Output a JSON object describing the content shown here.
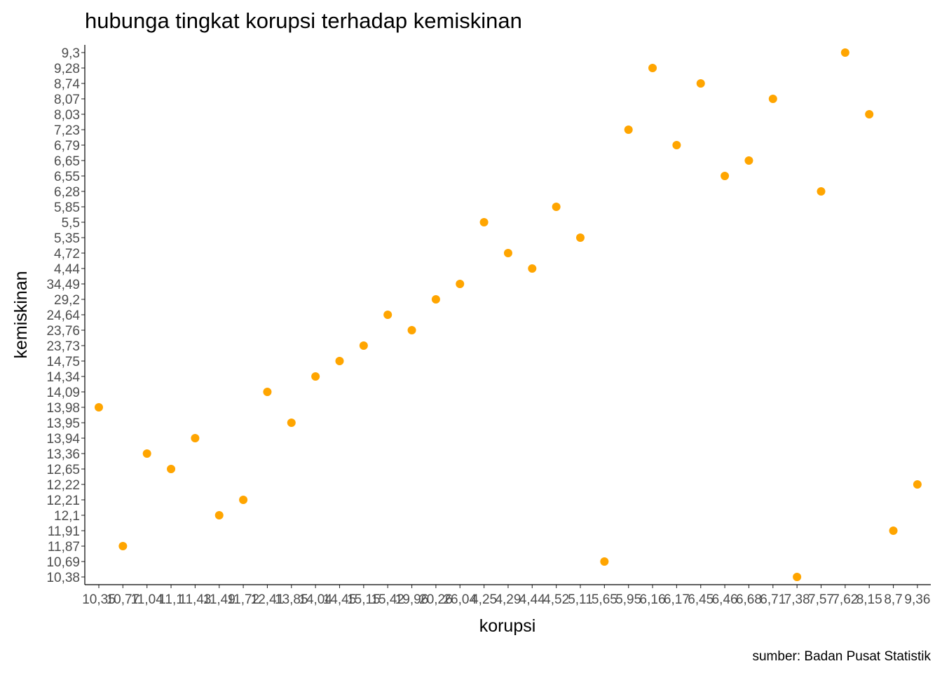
{
  "chart_data": {
    "type": "scatter",
    "title": "hubunga tingkat korupsi terhadap kemiskinan",
    "xlabel": "korupsi",
    "ylabel": "kemiskinan",
    "caption": "sumber: Badan Pusat Statistik",
    "x_axis_type": "categorical",
    "y_axis_type": "categorical",
    "x_categories": [
      "10,35",
      "10,77",
      "11,04",
      "11,1",
      "11,43",
      "11,49",
      "11,72",
      "12,41",
      "13,85",
      "14,04",
      "14,45",
      "15,15",
      "15,42",
      "19,96",
      "20,26",
      "26,04",
      "4,25",
      "4,29",
      "4,44",
      "4,52",
      "5,11",
      "5,65",
      "5,95",
      "6,16",
      "6,17",
      "6,45",
      "6,46",
      "6,68",
      "6,71",
      "7,38",
      "7,57",
      "7,62",
      "8,15",
      "8,7",
      "9,36"
    ],
    "x_tick_labels": [
      "10,35",
      "10,77",
      "11,04",
      "11,1",
      "11,43",
      "11,49",
      "11,72",
      "12,41",
      "13,85",
      "14,04",
      "14,45",
      "15,15",
      "15,42",
      "19,96",
      "20,26",
      "26,04",
      "4,25",
      "4,29",
      "4,44",
      "4,52",
      "5,11",
      "5,65",
      "5,95",
      "6,16",
      "6,17",
      "6,45",
      "6,46",
      "6,68",
      "6,71",
      "7,38",
      "7,57",
      "7,62",
      "8,15",
      "8,7",
      "9,36"
    ],
    "y_categories": [
      "10,38",
      "10,69",
      "11,87",
      "11,91",
      "12,1",
      "12,21",
      "12,22",
      "12,65",
      "13,36",
      "13,94",
      "13,95",
      "13,98",
      "14,09",
      "14,34",
      "14,75",
      "23,73",
      "23,76",
      "24,64",
      "29,2",
      "34,49",
      "4,44",
      "4,72",
      "5,35",
      "5,5",
      "5,85",
      "6,28",
      "6,55",
      "6,65",
      "6,79",
      "7,23",
      "8,03",
      "8,07",
      "8,74",
      "9,28",
      "9,3"
    ],
    "points": [
      {
        "x": "10,35",
        "y": "13,98"
      },
      {
        "x": "10,77",
        "y": "11,87"
      },
      {
        "x": "11,04",
        "y": "13,36"
      },
      {
        "x": "11,1",
        "y": "12,65"
      },
      {
        "x": "11,43",
        "y": "13,94"
      },
      {
        "x": "11,49",
        "y": "12,1"
      },
      {
        "x": "11,72",
        "y": "12,21"
      },
      {
        "x": "12,41",
        "y": "14,09"
      },
      {
        "x": "13,85",
        "y": "13,95"
      },
      {
        "x": "14,04",
        "y": "14,34"
      },
      {
        "x": "14,45",
        "y": "14,75"
      },
      {
        "x": "15,15",
        "y": "23,73"
      },
      {
        "x": "15,42",
        "y": "24,64"
      },
      {
        "x": "19,96",
        "y": "23,76"
      },
      {
        "x": "20,26",
        "y": "29,2"
      },
      {
        "x": "26,04",
        "y": "34,49"
      },
      {
        "x": "4,25",
        "y": "5,5"
      },
      {
        "x": "4,29",
        "y": "4,72"
      },
      {
        "x": "4,44",
        "y": "4,44"
      },
      {
        "x": "4,52",
        "y": "5,85"
      },
      {
        "x": "5,11",
        "y": "5,35"
      },
      {
        "x": "5,65",
        "y": "10,69"
      },
      {
        "x": "5,95",
        "y": "7,23"
      },
      {
        "x": "6,16",
        "y": "9,28"
      },
      {
        "x": "6,17",
        "y": "6,79"
      },
      {
        "x": "6,45",
        "y": "8,74"
      },
      {
        "x": "6,46",
        "y": "6,55"
      },
      {
        "x": "6,68",
        "y": "6,65"
      },
      {
        "x": "6,71",
        "y": "8,07"
      },
      {
        "x": "7,38",
        "y": "10,38"
      },
      {
        "x": "7,57",
        "y": "6,28"
      },
      {
        "x": "7,62",
        "y": "9,3"
      },
      {
        "x": "8,15",
        "y": "8,03"
      },
      {
        "x": "8,7",
        "y": "11,91"
      },
      {
        "x": "9,36",
        "y": "12,22"
      }
    ],
    "point_color": "#FFA500",
    "grid": false,
    "legend": "none"
  }
}
